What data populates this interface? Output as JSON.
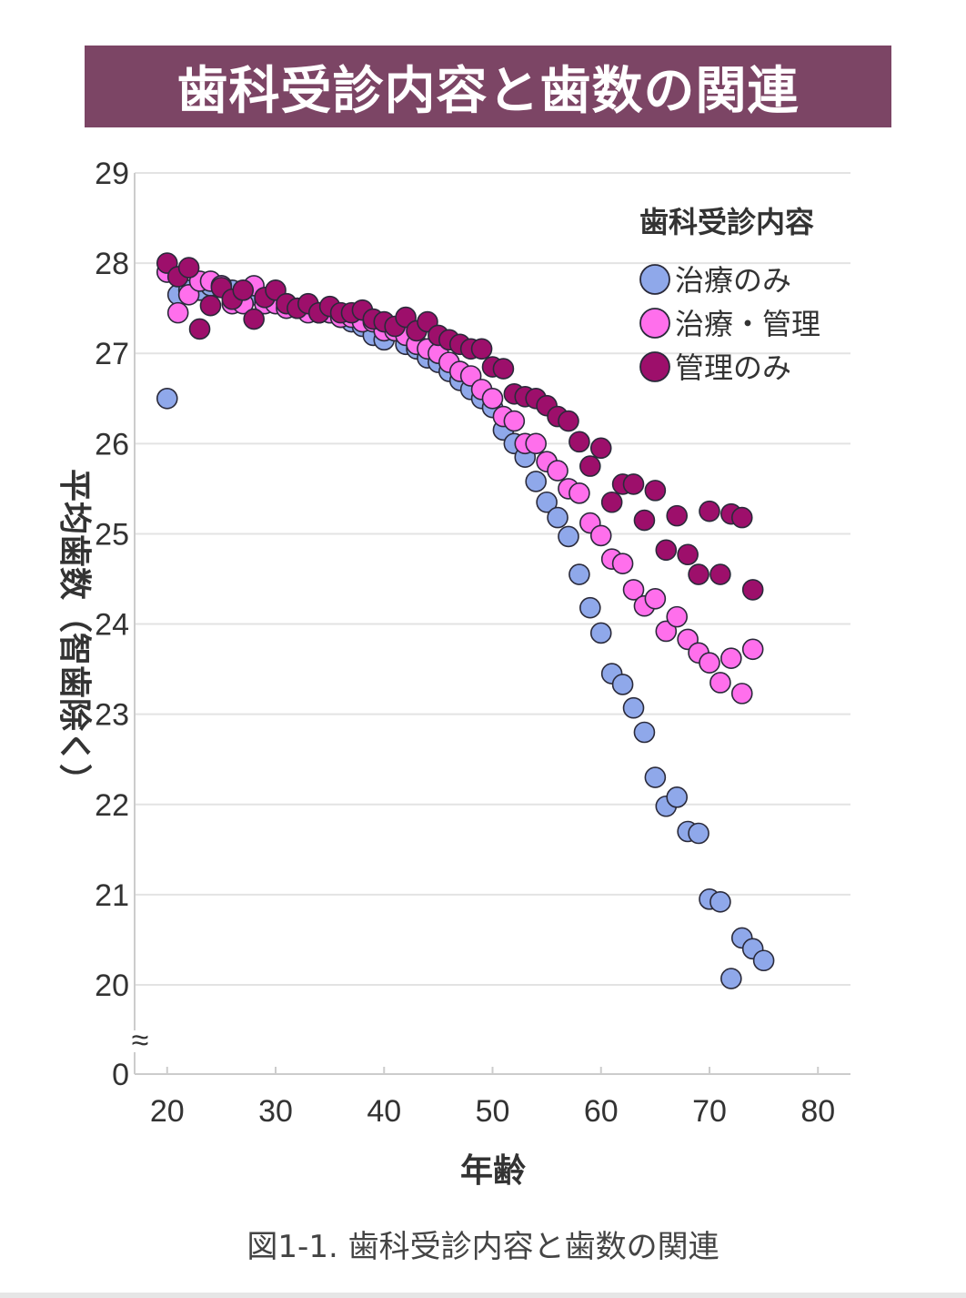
{
  "title": "歯科受診内容と歯数の関連",
  "caption": "図1-1. 歯科受診内容と歯数の関連",
  "chart_data": {
    "type": "scatter",
    "title": "歯科受診内容と歯数の関連",
    "xlabel": "年齢",
    "ylabel": "平均歯数（智歯除く）",
    "xlim": [
      17,
      83
    ],
    "ylim": [
      20,
      29
    ],
    "x_ticks": [
      "20",
      "30",
      "40",
      "50",
      "60",
      "70",
      "80"
    ],
    "y_ticks": [
      "29",
      "28",
      "27",
      "26",
      "25",
      "24",
      "23",
      "22",
      "21",
      "20"
    ],
    "y_break_label": "0",
    "axis_break_symbol": "≈",
    "grid": true,
    "legend_title": "歯科受診内容",
    "legend_position": "top-right",
    "series": [
      {
        "name": "治療のみ",
        "color": "#8fa8ea",
        "points": [
          [
            20,
            26.5
          ],
          [
            21,
            27.65
          ],
          [
            22,
            27.7
          ],
          [
            23,
            27.7
          ],
          [
            24,
            27.75
          ],
          [
            25,
            27.75
          ],
          [
            26,
            27.7
          ],
          [
            27,
            27.65
          ],
          [
            28,
            27.65
          ],
          [
            29,
            27.6
          ],
          [
            30,
            27.6
          ],
          [
            31,
            27.55
          ],
          [
            32,
            27.5
          ],
          [
            33,
            27.5
          ],
          [
            34,
            27.45
          ],
          [
            35,
            27.45
          ],
          [
            36,
            27.4
          ],
          [
            37,
            27.35
          ],
          [
            38,
            27.3
          ],
          [
            39,
            27.2
          ],
          [
            40,
            27.15
          ],
          [
            41,
            27.25
          ],
          [
            42,
            27.1
          ],
          [
            43,
            27.05
          ],
          [
            44,
            26.95
          ],
          [
            45,
            26.9
          ],
          [
            46,
            26.8
          ],
          [
            47,
            26.7
          ],
          [
            48,
            26.6
          ],
          [
            49,
            26.5
          ],
          [
            50,
            26.4
          ],
          [
            51,
            26.15
          ],
          [
            52,
            26.0
          ],
          [
            53,
            25.85
          ],
          [
            54,
            25.58
          ],
          [
            55,
            25.35
          ],
          [
            56,
            25.18
          ],
          [
            57,
            24.97
          ],
          [
            58,
            24.55
          ],
          [
            59,
            24.18
          ],
          [
            60,
            23.9
          ],
          [
            61,
            23.45
          ],
          [
            62,
            23.33
          ],
          [
            63,
            23.07
          ],
          [
            64,
            22.8
          ],
          [
            65,
            22.3
          ],
          [
            66,
            21.98
          ],
          [
            67,
            22.08
          ],
          [
            68,
            21.7
          ],
          [
            69,
            21.68
          ],
          [
            70,
            20.95
          ],
          [
            71,
            20.92
          ],
          [
            72,
            20.07
          ],
          [
            73,
            20.52
          ],
          [
            74,
            20.4
          ],
          [
            75,
            20.27
          ]
        ]
      },
      {
        "name": "治療・管理",
        "color": "#ff6fec",
        "points": [
          [
            20,
            27.9
          ],
          [
            21,
            27.45
          ],
          [
            22,
            27.65
          ],
          [
            23,
            27.8
          ],
          [
            24,
            27.8
          ],
          [
            25,
            27.75
          ],
          [
            26,
            27.55
          ],
          [
            27,
            27.55
          ],
          [
            28,
            27.75
          ],
          [
            29,
            27.55
          ],
          [
            30,
            27.55
          ],
          [
            31,
            27.5
          ],
          [
            32,
            27.5
          ],
          [
            33,
            27.45
          ],
          [
            34,
            27.45
          ],
          [
            35,
            27.45
          ],
          [
            36,
            27.4
          ],
          [
            37,
            27.4
          ],
          [
            38,
            27.35
          ],
          [
            39,
            27.35
          ],
          [
            40,
            27.25
          ],
          [
            41,
            27.25
          ],
          [
            42,
            27.2
          ],
          [
            43,
            27.1
          ],
          [
            44,
            27.05
          ],
          [
            45,
            27.0
          ],
          [
            46,
            26.9
          ],
          [
            47,
            26.8
          ],
          [
            48,
            26.75
          ],
          [
            49,
            26.6
          ],
          [
            50,
            26.5
          ],
          [
            51,
            26.3
          ],
          [
            52,
            26.25
          ],
          [
            53,
            26.0
          ],
          [
            54,
            26.0
          ],
          [
            55,
            25.8
          ],
          [
            56,
            25.7
          ],
          [
            57,
            25.5
          ],
          [
            58,
            25.45
          ],
          [
            59,
            25.12
          ],
          [
            60,
            24.98
          ],
          [
            61,
            24.72
          ],
          [
            62,
            24.67
          ],
          [
            63,
            24.38
          ],
          [
            64,
            24.2
          ],
          [
            65,
            24.28
          ],
          [
            66,
            23.92
          ],
          [
            67,
            24.08
          ],
          [
            68,
            23.83
          ],
          [
            69,
            23.68
          ],
          [
            70,
            23.57
          ],
          [
            71,
            23.35
          ],
          [
            72,
            23.62
          ],
          [
            73,
            23.23
          ],
          [
            74,
            23.72
          ]
        ]
      },
      {
        "name": "管理のみ",
        "color": "#9d0f6b",
        "points": [
          [
            20,
            28.0
          ],
          [
            21,
            27.85
          ],
          [
            22,
            27.95
          ],
          [
            23,
            27.27
          ],
          [
            24,
            27.53
          ],
          [
            25,
            27.73
          ],
          [
            26,
            27.6
          ],
          [
            27,
            27.7
          ],
          [
            28,
            27.38
          ],
          [
            29,
            27.62
          ],
          [
            30,
            27.7
          ],
          [
            31,
            27.55
          ],
          [
            32,
            27.5
          ],
          [
            33,
            27.55
          ],
          [
            34,
            27.45
          ],
          [
            35,
            27.52
          ],
          [
            36,
            27.45
          ],
          [
            37,
            27.45
          ],
          [
            38,
            27.48
          ],
          [
            39,
            27.38
          ],
          [
            40,
            27.35
          ],
          [
            41,
            27.3
          ],
          [
            42,
            27.4
          ],
          [
            43,
            27.25
          ],
          [
            44,
            27.35
          ],
          [
            45,
            27.2
          ],
          [
            46,
            27.15
          ],
          [
            47,
            27.1
          ],
          [
            48,
            27.05
          ],
          [
            49,
            27.05
          ],
          [
            50,
            26.85
          ],
          [
            51,
            26.83
          ],
          [
            52,
            26.55
          ],
          [
            53,
            26.52
          ],
          [
            54,
            26.5
          ],
          [
            55,
            26.42
          ],
          [
            56,
            26.3
          ],
          [
            57,
            26.25
          ],
          [
            58,
            26.02
          ],
          [
            59,
            25.75
          ],
          [
            60,
            25.95
          ],
          [
            61,
            25.35
          ],
          [
            62,
            25.55
          ],
          [
            63,
            25.55
          ],
          [
            64,
            25.15
          ],
          [
            65,
            25.48
          ],
          [
            66,
            24.82
          ],
          [
            67,
            25.2
          ],
          [
            68,
            24.77
          ],
          [
            69,
            24.55
          ],
          [
            70,
            25.25
          ],
          [
            71,
            24.55
          ],
          [
            72,
            25.22
          ],
          [
            73,
            25.18
          ],
          [
            74,
            24.38
          ]
        ]
      }
    ]
  }
}
